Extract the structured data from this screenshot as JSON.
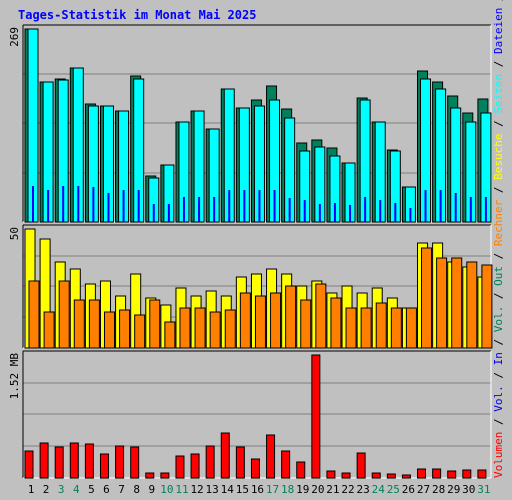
{
  "title": "Tages-Statistik im Monat Mai 2025",
  "colors": {
    "background": "#c0c0c0",
    "hits": "#00805c",
    "files": "#0000ff",
    "pages": "#00ffff",
    "visits": "#ffff00",
    "sites": "#ff8000",
    "kbytes": "#ff0000",
    "title_text": "#0000ff",
    "weekend_label": "#00805c",
    "weekday_label": "#000000"
  },
  "legend": {
    "top": [
      {
        "label": "Anfragen",
        "color": "#00805c"
      },
      {
        "label": "Dateien",
        "color": "#0000ff"
      },
      {
        "label": "Seiten",
        "color": "#00ffff"
      },
      {
        "label": "Besuche",
        "color": "#ffff00"
      },
      {
        "label": "Rechner",
        "color": "#ff8000"
      },
      {
        "label": "Out",
        "color": "#00805c"
      },
      {
        "label": "Vol.",
        "color": "#00805c"
      },
      {
        "label": "In",
        "color": "#0000ff"
      },
      {
        "label": "Vol.",
        "color": "#0000ff"
      },
      {
        "label": "Volumen",
        "color": "#ff0000"
      }
    ],
    "separator": "/"
  },
  "chart_data": [
    {
      "type": "bar",
      "panel": "top",
      "max_label": "269",
      "ylim": [
        0,
        269
      ],
      "categories": [
        "1",
        "2",
        "3",
        "4",
        "5",
        "6",
        "7",
        "8",
        "9",
        "10",
        "11",
        "12",
        "13",
        "14",
        "15",
        "16",
        "17",
        "18",
        "19",
        "20",
        "21",
        "22",
        "23",
        "24",
        "25",
        "26",
        "27",
        "28",
        "29",
        "30",
        "31"
      ],
      "series": [
        {
          "name": "Anfragen",
          "values": [
            269,
            195,
            200,
            214,
            165,
            161,
            155,
            203,
            64,
            79,
            139,
            155,
            130,
            186,
            159,
            170,
            189,
            158,
            110,
            114,
            103,
            82,
            173,
            140,
            100,
            49,
            211,
            195,
            175,
            152,
            171
          ]
        },
        {
          "name": "Dateien",
          "values": [
            50,
            44,
            50,
            50,
            49,
            40,
            45,
            45,
            25,
            25,
            35,
            35,
            35,
            45,
            44,
            44,
            44,
            34,
            30,
            25,
            27,
            24,
            35,
            30,
            27,
            20,
            44,
            44,
            40,
            35,
            35
          ]
        },
        {
          "name": "Seiten",
          "values": [
            269,
            195,
            198,
            214,
            162,
            161,
            155,
            200,
            62,
            79,
            139,
            155,
            130,
            186,
            159,
            162,
            170,
            145,
            99,
            104,
            92,
            82,
            170,
            140,
            99,
            49,
            200,
            186,
            159,
            140,
            152
          ]
        }
      ]
    },
    {
      "type": "bar",
      "panel": "middle",
      "max_label": "50",
      "ylim": [
        0,
        50
      ],
      "categories": [
        "1",
        "2",
        "3",
        "4",
        "5",
        "6",
        "7",
        "8",
        "9",
        "10",
        "11",
        "12",
        "13",
        "14",
        "15",
        "16",
        "17",
        "18",
        "19",
        "20",
        "21",
        "22",
        "23",
        "24",
        "25",
        "26",
        "27",
        "28",
        "29",
        "30",
        "31"
      ],
      "series": [
        {
          "name": "Besuche",
          "values": [
            50,
            46,
            36,
            33,
            27,
            28,
            22,
            31,
            21,
            18,
            25,
            22,
            24,
            22,
            30,
            31,
            33,
            31,
            26,
            28,
            23,
            26,
            23,
            25,
            21,
            17,
            44,
            44,
            36,
            34,
            30
          ]
        },
        {
          "name": "Rechner",
          "values": [
            28,
            15,
            28,
            20,
            20,
            15,
            16,
            14,
            20,
            11,
            17,
            17,
            15,
            16,
            23,
            22,
            23,
            26,
            20,
            27,
            21,
            17,
            17,
            19,
            17,
            17,
            42,
            38,
            38,
            36,
            35
          ]
        }
      ]
    },
    {
      "type": "bar",
      "panel": "bottom",
      "max_label": "1.52 MB",
      "ylim": [
        0,
        1.52
      ],
      "unit": "MB",
      "categories": [
        "1",
        "2",
        "3",
        "4",
        "5",
        "6",
        "7",
        "8",
        "9",
        "10",
        "11",
        "12",
        "13",
        "14",
        "15",
        "16",
        "17",
        "18",
        "19",
        "20",
        "21",
        "22",
        "23",
        "24",
        "25",
        "26",
        "27",
        "28",
        "29",
        "30",
        "31"
      ],
      "series": [
        {
          "name": "Volumen",
          "values": [
            0.33,
            0.43,
            0.38,
            0.43,
            0.42,
            0.3,
            0.4,
            0.38,
            0.06,
            0.06,
            0.27,
            0.3,
            0.4,
            0.55,
            0.38,
            0.24,
            0.53,
            0.33,
            0.2,
            1.52,
            0.09,
            0.06,
            0.31,
            0.06,
            0.05,
            0.04,
            0.11,
            0.11,
            0.09,
            0.1,
            0.1
          ]
        }
      ]
    }
  ],
  "days": [
    {
      "label": "1",
      "weekend": false
    },
    {
      "label": "2",
      "weekend": false
    },
    {
      "label": "3",
      "weekend": true
    },
    {
      "label": "4",
      "weekend": true
    },
    {
      "label": "5",
      "weekend": false
    },
    {
      "label": "6",
      "weekend": false
    },
    {
      "label": "7",
      "weekend": false
    },
    {
      "label": "8",
      "weekend": false
    },
    {
      "label": "9",
      "weekend": false
    },
    {
      "label": "10",
      "weekend": true
    },
    {
      "label": "11",
      "weekend": true
    },
    {
      "label": "12",
      "weekend": false
    },
    {
      "label": "13",
      "weekend": false
    },
    {
      "label": "14",
      "weekend": false
    },
    {
      "label": "15",
      "weekend": false
    },
    {
      "label": "16",
      "weekend": false
    },
    {
      "label": "17",
      "weekend": true
    },
    {
      "label": "18",
      "weekend": true
    },
    {
      "label": "19",
      "weekend": false
    },
    {
      "label": "20",
      "weekend": false
    },
    {
      "label": "21",
      "weekend": false
    },
    {
      "label": "22",
      "weekend": false
    },
    {
      "label": "23",
      "weekend": false
    },
    {
      "label": "24",
      "weekend": true
    },
    {
      "label": "25",
      "weekend": true
    },
    {
      "label": "26",
      "weekend": false
    },
    {
      "label": "27",
      "weekend": false
    },
    {
      "label": "28",
      "weekend": false
    },
    {
      "label": "29",
      "weekend": false
    },
    {
      "label": "30",
      "weekend": false
    },
    {
      "label": "31",
      "weekend": true
    }
  ]
}
